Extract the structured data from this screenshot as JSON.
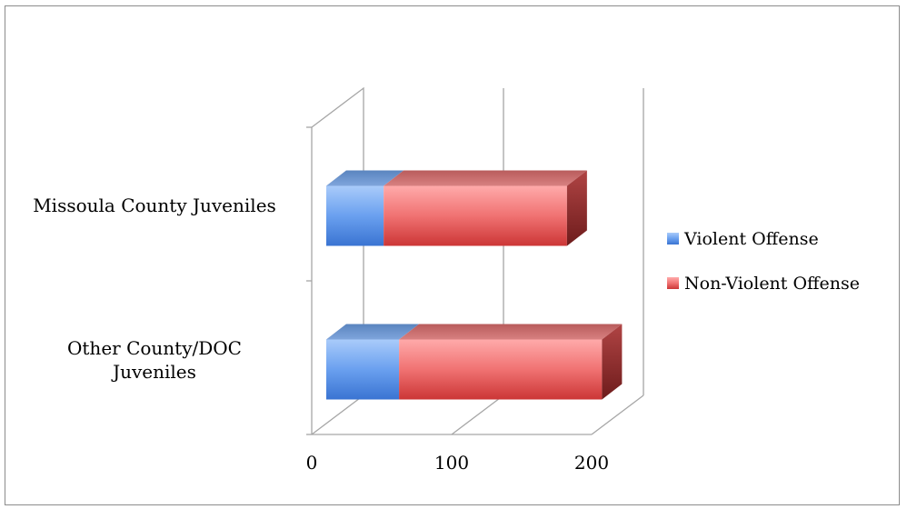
{
  "chart_data": {
    "type": "bar",
    "orientation": "horizontal",
    "stacked": true,
    "three_d": true,
    "categories": [
      "Missoula County Juveniles",
      "Other County/DOC Juveniles"
    ],
    "category_lines": [
      [
        "Missoula County Juveniles"
      ],
      [
        "Other County/DOC",
        "Juveniles"
      ]
    ],
    "series": [
      {
        "name": "Violent Offense",
        "values": [
          41,
          52
        ],
        "color": "#4f81bd"
      },
      {
        "name": "Non-Violent Offense",
        "values": [
          131,
          145
        ],
        "color": "#c0504d"
      }
    ],
    "xlim": [
      0,
      200
    ],
    "xticks": [
      "0",
      "100",
      "200"
    ],
    "grid": true,
    "legend": "right"
  }
}
